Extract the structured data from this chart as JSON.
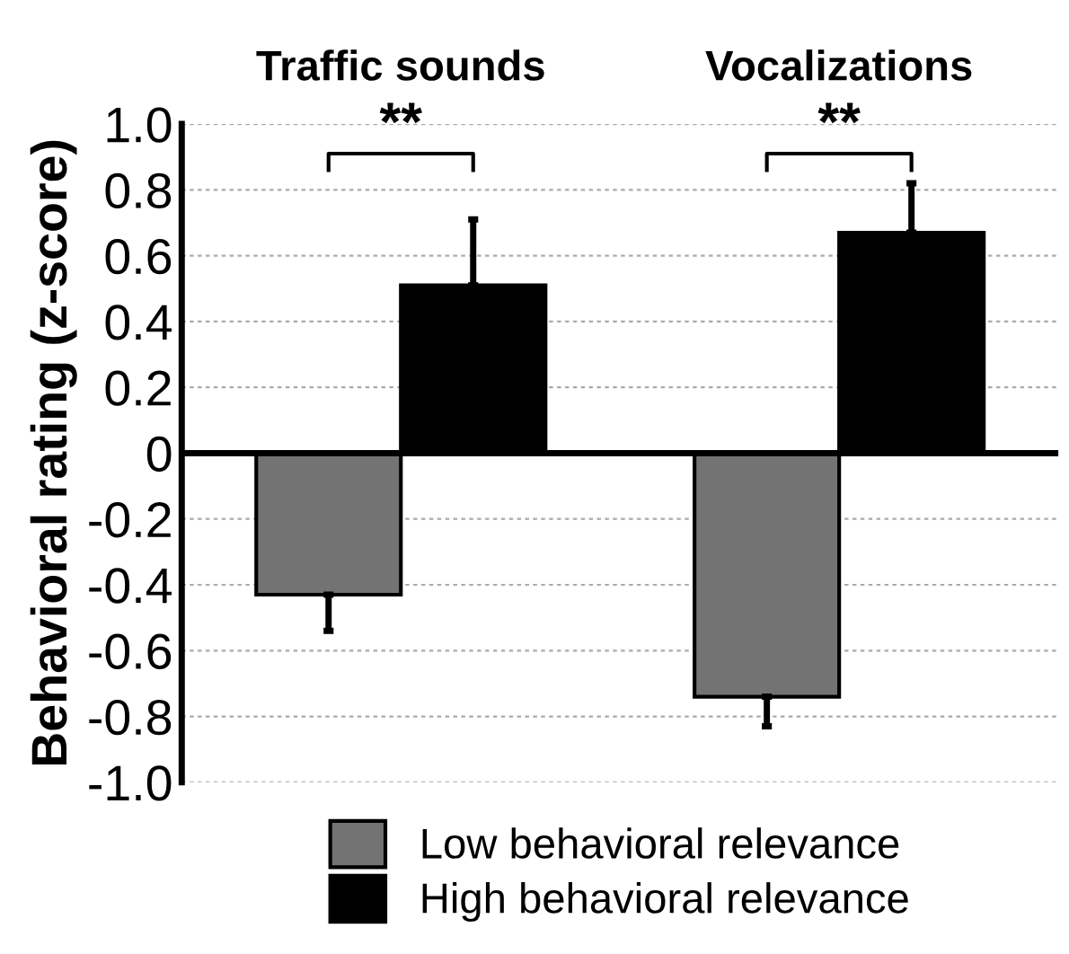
{
  "chart_data": {
    "type": "bar",
    "ylabel": "Behavioral rating (z-score)",
    "categories": [
      "Traffic sounds",
      "Vocalizations"
    ],
    "series": [
      {
        "name": "Low behavioral relevance",
        "color": "#737373",
        "values": [
          -0.43,
          -0.74
        ],
        "errors": [
          [
            -0.54,
            -0.43
          ],
          [
            -0.83,
            -0.74
          ]
        ]
      },
      {
        "name": "High behavioral relevance",
        "color": "#000000",
        "values": [
          0.51,
          0.67
        ],
        "errors": [
          [
            0.51,
            0.71
          ],
          [
            0.67,
            0.82
          ]
        ]
      }
    ],
    "ylim": [
      -1.0,
      1.0
    ],
    "yticks": [
      {
        "value": -1,
        "label": "-1.0"
      },
      -0.8,
      -0.6,
      -0.4,
      -0.2,
      0,
      0.2,
      0.4,
      0.6,
      0.8,
      {
        "value": 1,
        "label": "1.0"
      }
    ],
    "grid": "y",
    "legend": "bottom",
    "annotations": [
      "**",
      "**"
    ]
  }
}
